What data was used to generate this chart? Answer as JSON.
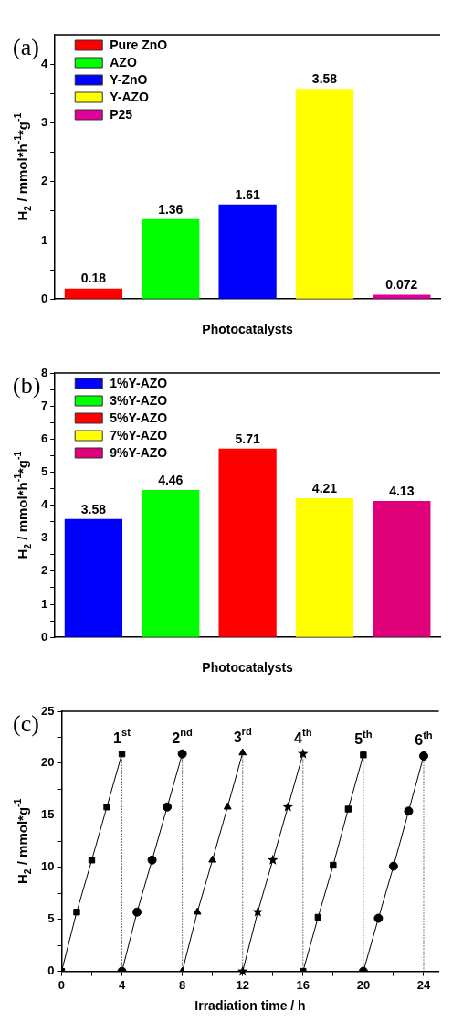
{
  "chart_data": [
    {
      "type": "bar",
      "title": "(a)",
      "xlabel": "Photocatalysts",
      "ylabel": "H$_{2}$ / mmol*h$^{-1}$*g$^{-1}$",
      "categories": [
        null,
        null,
        null,
        null,
        null
      ],
      "series": [
        {
          "name": "Pure ZnO",
          "color": "#ff0000",
          "values": [
            0.18,
            null,
            null,
            null,
            null
          ]
        },
        {
          "name": "AZO",
          "color": "#00ff00",
          "values": [
            null,
            1.36,
            null,
            null,
            null
          ]
        },
        {
          "name": "Y-ZnO",
          "color": "#0000ff",
          "values": [
            null,
            null,
            1.61,
            null,
            null
          ]
        },
        {
          "name": "Y-AZO",
          "color": "#ffff00",
          "values": [
            null,
            null,
            null,
            3.58,
            null
          ]
        },
        {
          "name": "P25",
          "color": "#e0009a",
          "values": [
            null,
            null,
            null,
            null,
            0.072
          ]
        }
      ],
      "ylim": [
        0,
        4.5
      ],
      "yticks": [
        0,
        {
          "value": 0.5,
          "label": null
        },
        1,
        {
          "value": 1.5,
          "label": null
        },
        2,
        {
          "value": 2.5,
          "label": null
        },
        3,
        {
          "value": 3.5,
          "label": null
        },
        4
      ],
      "data_labels": true,
      "legend": "top left",
      "grid": false
    },
    {
      "type": "bar",
      "title": "(b)",
      "xlabel": "Photocatalysts",
      "ylabel": "H$_{2}$ / mmol*h$^{-1}$*g$^{-1}$",
      "categories": [
        null,
        null,
        null,
        null,
        null
      ],
      "series": [
        {
          "name": "1%Y-AZO",
          "color": "#0000ff",
          "values": [
            3.58,
            null,
            null,
            null,
            null
          ]
        },
        {
          "name": "3%Y-AZO",
          "color": "#00ff00",
          "values": [
            null,
            4.46,
            null,
            null,
            null
          ]
        },
        {
          "name": "5%Y-AZO",
          "color": "#ff0000",
          "values": [
            null,
            null,
            5.71,
            null,
            null
          ]
        },
        {
          "name": "7%Y-AZO",
          "color": "#ffff00",
          "values": [
            null,
            null,
            null,
            4.21,
            null
          ]
        },
        {
          "name": "9%Y-AZO",
          "color": "#e0007a",
          "values": [
            null,
            null,
            null,
            null,
            4.13
          ]
        }
      ],
      "ylim": [
        0,
        8
      ],
      "yticks": [
        0,
        {
          "value": 0.5,
          "label": null
        },
        1,
        {
          "value": 1.5,
          "label": null
        },
        2,
        {
          "value": 2.5,
          "label": null
        },
        3,
        {
          "value": 3.5,
          "label": null
        },
        4,
        {
          "value": 4.5,
          "label": null
        },
        5,
        {
          "value": 5.5,
          "label": null
        },
        6,
        {
          "value": 6.5,
          "label": null
        },
        7,
        {
          "value": 7.5,
          "label": null
        },
        8
      ],
      "data_labels": true,
      "legend": "top left",
      "grid": false
    },
    {
      "type": "line",
      "title": "(c)",
      "xlabel": "Irradiation time / h",
      "ylabel": "H$_{2}$ / mmol*g$^{-1}$",
      "series": [
        {
          "color": "#000000",
          "marker": "square",
          "x": [
            0,
            1,
            2,
            3,
            4
          ],
          "values": [
            0,
            5.7,
            10.7,
            15.8,
            20.9
          ]
        },
        {
          "color": "#000000",
          "marker": "circle",
          "x": [
            4,
            5,
            6,
            7,
            8
          ],
          "values": [
            0,
            5.7,
            10.7,
            15.8,
            20.9
          ]
        },
        {
          "color": "#000000",
          "marker": "triangle",
          "x": [
            8,
            9,
            10,
            11,
            12
          ],
          "values": [
            0,
            5.7,
            10.7,
            15.8,
            21
          ]
        },
        {
          "color": "#000000",
          "marker": "star",
          "x": [
            12,
            13,
            14,
            15,
            16
          ],
          "values": [
            0,
            5.7,
            10.7,
            15.8,
            20.9
          ]
        },
        {
          "color": "#000000",
          "marker": "square",
          "x": [
            16,
            17,
            18,
            19,
            20
          ],
          "values": [
            0,
            5.2,
            10.2,
            15.6,
            20.8
          ]
        },
        {
          "color": "#000000",
          "marker": "circle",
          "x": [
            20,
            21,
            22,
            23,
            24
          ],
          "values": [
            0,
            5.1,
            10.1,
            15.4,
            20.7
          ]
        }
      ],
      "ref_lines": [
        {
          "axis": "x",
          "value": 4,
          "label": "1$^{st}$",
          "line_style": "dotted"
        },
        {
          "axis": "x",
          "value": 8,
          "label": "2$^{nd}$",
          "line_style": "dotted"
        },
        {
          "axis": "x",
          "value": 12,
          "label": "3$^{rd}$",
          "line_style": "dotted"
        },
        {
          "axis": "x",
          "value": 16,
          "label": "4$^{th}$",
          "line_style": "dotted"
        },
        {
          "axis": "x",
          "value": 20,
          "label": "5$^{th}$",
          "line_style": "dotted"
        },
        {
          "axis": "x",
          "value": 24,
          "label": "6$^{th}$",
          "line_style": "dotted"
        }
      ],
      "xlim": [
        0,
        25
      ],
      "xticks": [
        0,
        {
          "value": 2,
          "label": null
        },
        4,
        {
          "value": 6,
          "label": null
        },
        8,
        {
          "value": 10,
          "label": null
        },
        12,
        {
          "value": 14,
          "label": null
        },
        16,
        {
          "value": 18,
          "label": null
        },
        20,
        {
          "value": 22,
          "label": null
        },
        24
      ],
      "ylim": [
        0,
        25
      ],
      "yticks": [
        0,
        {
          "value": 2.5,
          "label": null
        },
        5,
        {
          "value": 7.5,
          "label": null
        },
        10,
        {
          "value": 12.5,
          "label": null
        },
        15,
        {
          "value": 17.5,
          "label": null
        },
        20,
        {
          "value": 22.5,
          "label": null
        },
        25
      ],
      "grid": false,
      "line_style": "solid"
    }
  ]
}
